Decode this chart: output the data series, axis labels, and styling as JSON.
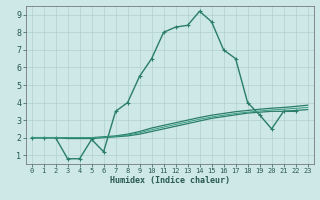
{
  "xlabel": "Humidex (Indice chaleur)",
  "xlim": [
    -0.5,
    23.5
  ],
  "ylim": [
    0.5,
    9.5
  ],
  "xticks": [
    0,
    1,
    2,
    3,
    4,
    5,
    6,
    7,
    8,
    9,
    10,
    11,
    12,
    13,
    14,
    15,
    16,
    17,
    18,
    19,
    20,
    21,
    22,
    23
  ],
  "yticks": [
    1,
    2,
    3,
    4,
    5,
    6,
    7,
    8,
    9
  ],
  "bg_color": "#cde8e6",
  "grid_color": "#b0d0ce",
  "lines": [
    {
      "x": [
        0,
        1,
        2,
        3,
        4,
        5,
        6,
        7,
        8,
        9,
        10,
        11,
        12,
        13,
        14,
        15,
        16,
        17,
        18,
        19,
        20,
        21,
        22,
        23
      ],
      "y": [
        2.0,
        2.0,
        2.0,
        0.8,
        0.8,
        1.9,
        1.2,
        3.5,
        4.0,
        5.5,
        6.5,
        8.0,
        8.3,
        8.4,
        9.2,
        8.6,
        7.0,
        6.5,
        4.0,
        3.3,
        2.5,
        3.5,
        3.5,
        null
      ],
      "color": "#2a7d6a",
      "lw": 1.0,
      "marker": true,
      "ms": 3
    },
    {
      "x": [
        0,
        1,
        2,
        3,
        4,
        5,
        6,
        7,
        8,
        9,
        10,
        11,
        12,
        13,
        14,
        15,
        16,
        17,
        18,
        19,
        20,
        21,
        22,
        23
      ],
      "y": [
        2.0,
        2.0,
        2.0,
        1.95,
        1.95,
        1.95,
        2.0,
        2.05,
        2.1,
        2.2,
        2.35,
        2.5,
        2.65,
        2.8,
        2.95,
        3.1,
        3.2,
        3.3,
        3.4,
        3.45,
        3.5,
        3.5,
        3.55,
        3.6
      ],
      "color": "#2a7d6a",
      "lw": 0.9,
      "marker": false,
      "ms": 0
    },
    {
      "x": [
        0,
        1,
        2,
        3,
        4,
        5,
        6,
        7,
        8,
        9,
        10,
        11,
        12,
        13,
        14,
        15,
        16,
        17,
        18,
        19,
        20,
        21,
        22,
        23
      ],
      "y": [
        2.0,
        2.0,
        2.0,
        2.0,
        2.0,
        2.0,
        2.05,
        2.1,
        2.2,
        2.35,
        2.55,
        2.7,
        2.85,
        3.0,
        3.15,
        3.28,
        3.38,
        3.48,
        3.55,
        3.62,
        3.68,
        3.72,
        3.78,
        3.85
      ],
      "color": "#2a7d6a",
      "lw": 0.9,
      "marker": false,
      "ms": 0
    },
    {
      "x": [
        0,
        1,
        2,
        3,
        4,
        5,
        6,
        7,
        8,
        9,
        10,
        11,
        12,
        13,
        14,
        15,
        16,
        17,
        18,
        19,
        20,
        21,
        22,
        23
      ],
      "y": [
        2.0,
        2.0,
        2.0,
        2.0,
        2.0,
        2.0,
        2.02,
        2.07,
        2.15,
        2.28,
        2.45,
        2.6,
        2.75,
        2.9,
        3.05,
        3.18,
        3.28,
        3.38,
        3.45,
        3.52,
        3.58,
        3.62,
        3.67,
        3.72
      ],
      "color": "#3a9c85",
      "lw": 0.7,
      "marker": false,
      "ms": 0
    }
  ]
}
